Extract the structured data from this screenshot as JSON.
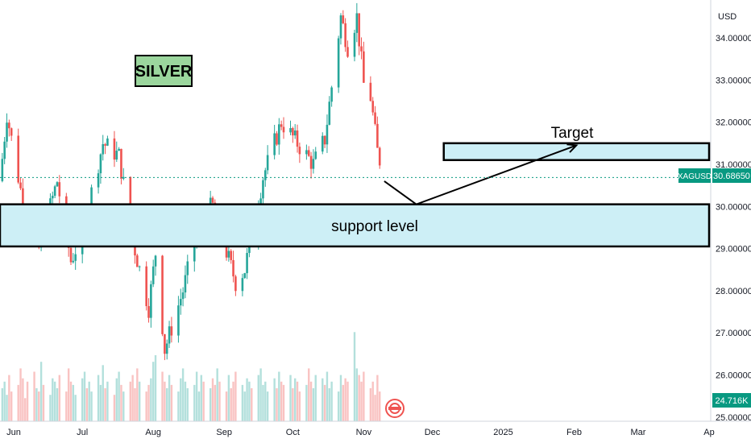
{
  "chart_data": {
    "type": "candlestick",
    "symbol": "XAGUSD",
    "title": "SILVER",
    "currency_label": "USD",
    "last_price_label": "30.68650",
    "last_price": 30.6865,
    "volume_label": "24.716K",
    "y_ticks": [
      "34.00000",
      "33.00000",
      "32.00000",
      "31.00000",
      "30.00000",
      "29.00000",
      "28.00000",
      "27.00000",
      "26.00000",
      "25.00000"
    ],
    "ylim": [
      24.9,
      34.9
    ],
    "x_ticks": [
      "Jun",
      "Jul",
      "Aug",
      "Sep",
      "Oct",
      "Nov",
      "Dec",
      "2025",
      "Feb",
      "Mar",
      "Ap"
    ],
    "x_tick_dates": [
      "2024-06-01",
      "2024-07-01",
      "2024-08-01",
      "2024-09-01",
      "2024-10-01",
      "2024-11-01",
      "2024-12-01",
      "2025-01-01",
      "2025-02-01",
      "2025-03-01",
      "2025-04-01"
    ],
    "date_range": [
      "2024-05-26",
      "2025-04-01"
    ],
    "anchors": [
      {
        "date": "2024-05-26",
        "price": 30.6
      },
      {
        "date": "2024-05-29",
        "price": 32.2
      },
      {
        "date": "2024-06-07",
        "price": 29.5
      },
      {
        "date": "2024-06-12",
        "price": 29.0
      },
      {
        "date": "2024-06-20",
        "price": 30.6
      },
      {
        "date": "2024-06-26",
        "price": 28.7
      },
      {
        "date": "2024-07-01",
        "price": 29.4
      },
      {
        "date": "2024-07-10",
        "price": 31.5
      },
      {
        "date": "2024-07-17",
        "price": 31.2
      },
      {
        "date": "2024-07-23",
        "price": 29.2
      },
      {
        "date": "2024-07-30",
        "price": 27.6
      },
      {
        "date": "2024-08-02",
        "price": 28.9
      },
      {
        "date": "2024-08-06",
        "price": 26.6
      },
      {
        "date": "2024-08-14",
        "price": 28.0
      },
      {
        "date": "2024-08-22",
        "price": 29.8
      },
      {
        "date": "2024-08-27",
        "price": 30.0
      },
      {
        "date": "2024-09-06",
        "price": 28.2
      },
      {
        "date": "2024-09-10",
        "price": 28.5
      },
      {
        "date": "2024-09-18",
        "price": 30.7
      },
      {
        "date": "2024-09-26",
        "price": 32.0
      },
      {
        "date": "2024-10-03",
        "price": 31.5
      },
      {
        "date": "2024-10-10",
        "price": 31.0
      },
      {
        "date": "2024-10-15",
        "price": 31.6
      },
      {
        "date": "2024-10-22",
        "price": 34.5
      },
      {
        "date": "2024-10-25",
        "price": 33.8
      },
      {
        "date": "2024-10-29",
        "price": 34.5
      },
      {
        "date": "2024-11-01",
        "price": 32.9
      },
      {
        "date": "2024-11-04",
        "price": 32.6
      },
      {
        "date": "2024-11-07",
        "price": 31.3
      },
      {
        "date": "2024-11-10",
        "price": 30.7
      }
    ],
    "volume_ylim": [
      0,
      30
    ],
    "volume_values": [
      10,
      12,
      8,
      14,
      9,
      11,
      16,
      13,
      7,
      12,
      15,
      10,
      9,
      18,
      11,
      8,
      13,
      12,
      10,
      14,
      9,
      16,
      12,
      11,
      8,
      13,
      15,
      10,
      12,
      9,
      14,
      11,
      17,
      10,
      12,
      8,
      13,
      15,
      11,
      9,
      12,
      14,
      10,
      16,
      12,
      9,
      11,
      13,
      18,
      20,
      15,
      12,
      10,
      14,
      11,
      9,
      13,
      16,
      12,
      10,
      11,
      15,
      9,
      14,
      12,
      10,
      13,
      11,
      16,
      12,
      9,
      14,
      10,
      12,
      15,
      11,
      9,
      13,
      12,
      10,
      14,
      16,
      11,
      12,
      9,
      13,
      10,
      15,
      12,
      11,
      14,
      10,
      13,
      12,
      9,
      11,
      16,
      12,
      10,
      14,
      13,
      11,
      15,
      10,
      12,
      9,
      14,
      11,
      13,
      12,
      27,
      16,
      14,
      12,
      15
    ],
    "annotations": [
      {
        "label": "support level",
        "type": "zone",
        "price_low": 29.05,
        "price_high": 30.05,
        "date_start": "2024-05-26",
        "date_end": "2025-04-01",
        "fill": "#cdeff6"
      },
      {
        "label": "Target",
        "type": "zone",
        "price_low": 31.1,
        "price_high": 31.5,
        "date_start": "2024-12-06",
        "date_end": "2025-04-01",
        "fill": "#cdeff6"
      },
      {
        "label": "",
        "type": "path",
        "points": [
          {
            "date": "2024-11-10",
            "price": 30.6
          },
          {
            "date": "2024-11-24",
            "price": 30.05
          },
          {
            "date": "2025-02-02",
            "price": 31.45
          }
        ]
      }
    ]
  },
  "colors": {
    "up": "#26a69a",
    "down": "#ef5350",
    "zone_fill": "#cdeff6",
    "label_box_fill": "#9bd69d",
    "price_tag": "#089981",
    "text": "#131722",
    "axis_text": "#131722"
  }
}
